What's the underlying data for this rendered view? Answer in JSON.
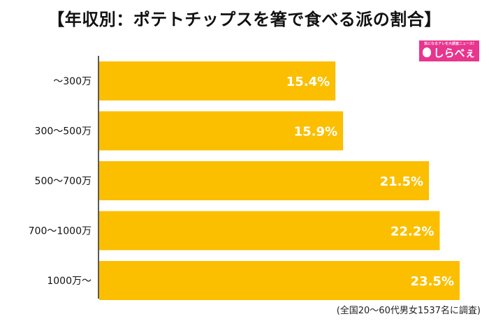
{
  "title": "【年収別：ポテトチップスを箸で食べる派の割合】",
  "logo": {
    "text": "しらべぇ",
    "tagline": "気になるアレを大調査ニュース!"
  },
  "note": "(全国20〜60代男女1537名に調査)",
  "colors": {
    "bar": "#fbbf00",
    "label": "#ffffff",
    "axis": "#222222"
  },
  "chart_data": {
    "type": "bar",
    "orientation": "horizontal",
    "title": "【年収別：ポテトチップスを箸で食べる派の割合】",
    "categories": [
      "〜300万",
      "300〜500万",
      "500〜700万",
      "700〜1000万",
      "1000万〜"
    ],
    "values": [
      15.4,
      15.9,
      21.5,
      22.2,
      23.5
    ],
    "value_labels": [
      "15.4%",
      "15.9%",
      "21.5%",
      "22.2%",
      "23.5%"
    ],
    "xlabel": "",
    "ylabel": "",
    "xlim": [
      0,
      23.5
    ],
    "grid": false,
    "legend": "none"
  }
}
